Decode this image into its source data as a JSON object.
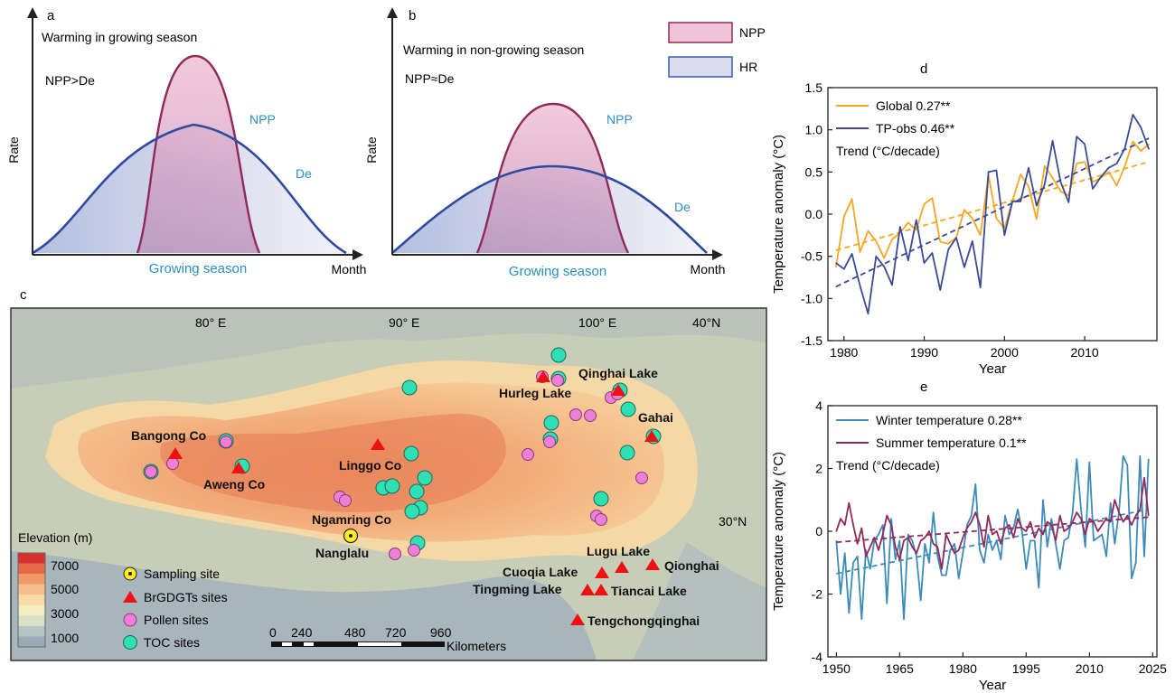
{
  "panels": {
    "a": {
      "letter": "a",
      "heading": "Warming in growing season",
      "relation": "NPP>De",
      "ylabel": "Rate",
      "xlabel": "Month",
      "season_label": "Growing season",
      "npp_label": "NPP",
      "de_label": "De"
    },
    "b": {
      "letter": "b",
      "heading": "Warming in non-growing season",
      "relation": "NPP≈De",
      "ylabel": "Rate",
      "xlabel": "Month",
      "season_label": "Growing season",
      "npp_label": "NPP",
      "de_label": "De"
    },
    "legend_ab": [
      {
        "label": "NPP",
        "fill": "#f0c4d6",
        "stroke": "#8e2a5c"
      },
      {
        "label": "HR",
        "fill": "#dcdcee",
        "stroke": "#3a5aa8"
      }
    ],
    "c": {
      "letter": "c",
      "lon_labels": [
        "80° E",
        "90° E",
        "100° E"
      ],
      "lat_labels": [
        "40°N",
        "30°N"
      ],
      "places": [
        "Bangong Co",
        "Aweng Co",
        "Linggo Co",
        "Ngamring Co",
        "Nanglalu",
        "Hurleg Lake",
        "Qinghai Lake",
        "Gahai",
        "Lugu Lake",
        "Cuoqia Lake",
        "Qionghai",
        "Tingming Lake",
        "Tiancai Lake",
        "Tengchongqinghai"
      ],
      "elevation_title": "Elevation (m)",
      "elevation_ticks": [
        "7000",
        "5000",
        "3000",
        "1000"
      ],
      "elevation_colors": [
        "#d7302f",
        "#e8694a",
        "#f09a6a",
        "#f6be8c",
        "#f8dca8",
        "#f2ecc0",
        "#d8e0c6",
        "#b7c4c4",
        "#9aaab8"
      ],
      "site_legend": [
        "Sampling site",
        "BrGDGTs sites",
        "Pollen sites",
        "TOC sites"
      ],
      "scale_ticks": [
        "0",
        "240",
        "480",
        "720",
        "960"
      ],
      "scale_unit": "Kilometers"
    }
  },
  "chart_data": [
    {
      "panel": "d",
      "type": "line",
      "title": "d",
      "xlabel": "Year",
      "ylabel": "Temperature anomaly (°C)",
      "xlim": [
        1978,
        2019
      ],
      "ylim": [
        -1.5,
        1.5
      ],
      "xticks": [
        "1980",
        "1990",
        "2000",
        "2010"
      ],
      "yticks": [
        "1.5",
        "1.0",
        "0.5",
        "0.0",
        "-0.5",
        "-1.0",
        "-1.5"
      ],
      "trend_title": "Trend (°C/decade)",
      "series": [
        {
          "name": "Global 0.27**",
          "color": "#f5a623",
          "x": [
            1979,
            1980,
            1981,
            1982,
            1983,
            1984,
            1985,
            1986,
            1987,
            1988,
            1989,
            1990,
            1991,
            1992,
            1993,
            1994,
            1995,
            1996,
            1997,
            1998,
            1999,
            2000,
            2001,
            2002,
            2003,
            2004,
            2005,
            2006,
            2007,
            2008,
            2009,
            2010,
            2011,
            2012,
            2013,
            2014,
            2015,
            2016,
            2017,
            2018
          ],
          "values": [
            -0.63,
            -0.03,
            0.18,
            -0.45,
            -0.2,
            -0.32,
            -0.52,
            -0.3,
            -0.22,
            -0.1,
            -0.19,
            0.12,
            0.19,
            -0.33,
            -0.35,
            -0.28,
            0.05,
            -0.05,
            -0.25,
            0.46,
            -0.05,
            -0.17,
            0.16,
            0.47,
            0.33,
            -0.06,
            0.57,
            0.43,
            0.27,
            0.22,
            0.6,
            0.62,
            0.38,
            0.43,
            0.5,
            0.34,
            0.57,
            0.86,
            0.75,
            0.83
          ],
          "trend": [
            -0.43,
            0.62
          ]
        },
        {
          "name": "TP-obs 0.46**",
          "color": "#3c4a96",
          "x": [
            1979,
            1980,
            1981,
            1982,
            1983,
            1984,
            1985,
            1986,
            1987,
            1988,
            1989,
            1990,
            1991,
            1992,
            1993,
            1994,
            1995,
            1996,
            1997,
            1998,
            1999,
            2000,
            2001,
            2002,
            2003,
            2004,
            2005,
            2006,
            2007,
            2008,
            2009,
            2010,
            2011,
            2012,
            2013,
            2014,
            2015,
            2016,
            2017,
            2018
          ],
          "values": [
            -0.58,
            -0.65,
            -0.47,
            -0.85,
            -1.18,
            -0.5,
            -0.62,
            -0.84,
            -0.15,
            -0.55,
            -0.07,
            -0.58,
            -0.46,
            -0.9,
            -0.42,
            -0.28,
            -0.63,
            -0.32,
            -0.87,
            0.5,
            0.52,
            -0.25,
            0.15,
            0.15,
            0.55,
            0.1,
            0.35,
            0.87,
            0.38,
            0.14,
            0.92,
            0.83,
            0.3,
            0.44,
            0.55,
            0.6,
            0.78,
            1.18,
            1.03,
            0.77
          ],
          "trend": [
            -0.86,
            0.9
          ]
        }
      ]
    },
    {
      "panel": "e",
      "type": "line",
      "title": "e",
      "xlabel": "Year",
      "ylabel": "Temperature anomaly (°C)",
      "xlim": [
        1948,
        2026
      ],
      "ylim": [
        -4,
        4
      ],
      "xticks": [
        "1950",
        "1965",
        "1980",
        "1995",
        "2010",
        "2025"
      ],
      "yticks": [
        "4",
        "2",
        "0",
        "-2",
        "-4"
      ],
      "trend_title": "Trend (°C/decade)",
      "series": [
        {
          "name": "Winter temperature 0.28**",
          "color": "#3d8bb8",
          "x": [
            1950,
            1951,
            1952,
            1953,
            1954,
            1955,
            1956,
            1957,
            1958,
            1959,
            1960,
            1961,
            1962,
            1963,
            1964,
            1965,
            1966,
            1967,
            1968,
            1969,
            1970,
            1971,
            1972,
            1973,
            1974,
            1975,
            1976,
            1977,
            1978,
            1979,
            1980,
            1981,
            1982,
            1983,
            1984,
            1985,
            1986,
            1987,
            1988,
            1989,
            1990,
            1991,
            1992,
            1993,
            1994,
            1995,
            1996,
            1997,
            1998,
            1999,
            2000,
            2001,
            2002,
            2003,
            2004,
            2005,
            2006,
            2007,
            2008,
            2009,
            2010,
            2011,
            2012,
            2013,
            2014,
            2015,
            2016,
            2017,
            2018,
            2019,
            2020,
            2021,
            2022,
            2023,
            2024
          ],
          "values": [
            -0.3,
            -2.0,
            -0.7,
            -2.6,
            -1.0,
            -0.8,
            -2.8,
            -0.6,
            -1.2,
            -0.3,
            -0.1,
            0.2,
            -2.3,
            0.4,
            -0.9,
            -0.3,
            -2.8,
            -0.1,
            -0.3,
            -0.8,
            -2.2,
            -0.4,
            -1.0,
            0.6,
            -0.8,
            -1.4,
            -1.4,
            -0.6,
            -0.4,
            -1.5,
            -0.7,
            0.2,
            0.5,
            1.5,
            -0.6,
            -1.0,
            -0.1,
            -0.6,
            -0.3,
            -0.9,
            0.5,
            -0.1,
            0.1,
            0.7,
            0.0,
            -1.2,
            -0.3,
            -0.3,
            -1.8,
            1.0,
            -0.5,
            0.4,
            -0.4,
            -1.2,
            -0.3,
            -0.2,
            0.6,
            2.3,
            0.7,
            -0.5,
            2.2,
            -0.3,
            -0.2,
            -0.1,
            -0.8,
            0.9,
            -0.4,
            0.6,
            2.4,
            2.1,
            -1.5,
            -1.0,
            2.4,
            -0.8,
            2.3
          ],
          "trend": [
            -1.35,
            0.7
          ]
        },
        {
          "name": "Summer temperature 0.1**",
          "color": "#8e2a5c",
          "x": [
            1950,
            1951,
            1952,
            1953,
            1954,
            1955,
            1956,
            1957,
            1958,
            1959,
            1960,
            1961,
            1962,
            1963,
            1964,
            1965,
            1966,
            1967,
            1968,
            1969,
            1970,
            1971,
            1972,
            1973,
            1974,
            1975,
            1976,
            1977,
            1978,
            1979,
            1980,
            1981,
            1982,
            1983,
            1984,
            1985,
            1986,
            1987,
            1988,
            1989,
            1990,
            1991,
            1992,
            1993,
            1994,
            1995,
            1996,
            1997,
            1998,
            1999,
            2000,
            2001,
            2002,
            2003,
            2004,
            2005,
            2006,
            2007,
            2008,
            2009,
            2010,
            2011,
            2012,
            2013,
            2014,
            2015,
            2016,
            2017,
            2018,
            2019,
            2020,
            2021,
            2022,
            2023,
            2024
          ],
          "values": [
            0.0,
            0.4,
            0.2,
            0.9,
            0.2,
            -0.4,
            0.1,
            -0.8,
            -0.5,
            -0.2,
            -0.6,
            -0.1,
            0.5,
            0.2,
            -0.5,
            -0.9,
            -0.3,
            -0.2,
            -0.5,
            -0.7,
            -0.3,
            -0.2,
            0.0,
            -0.4,
            -0.5,
            -1.2,
            -0.1,
            -0.4,
            -0.7,
            -0.6,
            -0.2,
            0.1,
            0.3,
            0.6,
            0.2,
            -0.5,
            0.5,
            -0.1,
            0.0,
            -0.4,
            0.1,
            0.2,
            -0.2,
            0.4,
            0.1,
            0.0,
            0.3,
            -0.2,
            0.1,
            -0.1,
            0.3,
            0.2,
            -0.3,
            0.5,
            0.0,
            0.1,
            0.3,
            0.6,
            0.4,
            -0.1,
            0.4,
            0.3,
            0.0,
            0.2,
            0.4,
            0.3,
            1.0,
            0.6,
            0.3,
            0.5,
            0.2,
            0.5,
            0.7,
            1.7,
            0.5
          ],
          "trend": [
            -0.35,
            0.45
          ]
        }
      ]
    }
  ]
}
